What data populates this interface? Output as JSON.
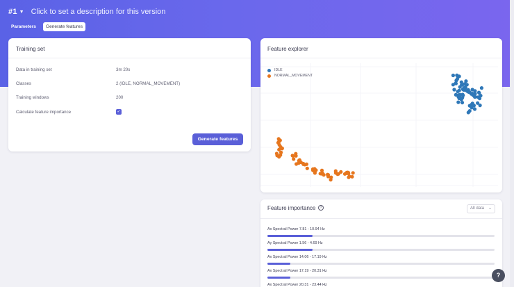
{
  "header": {
    "version_number": "#1",
    "version_description": "Click to set a description for this version",
    "tabs": [
      {
        "label": "Parameters"
      },
      {
        "label": "Generate features"
      }
    ]
  },
  "training_set": {
    "title": "Training set",
    "rows": [
      {
        "label": "Data in training set",
        "value": "3m 20s"
      },
      {
        "label": "Classes",
        "value": "2 (IDLE, NORMAL_MOVEMENT)"
      },
      {
        "label": "Training windows",
        "value": "200"
      },
      {
        "label": "Calculate feature importance",
        "checked": true
      }
    ],
    "generate_button": "Generate features"
  },
  "feature_explorer": {
    "title": "Feature explorer",
    "legend": [
      {
        "label": "IDLE",
        "color": "#2f78b8"
      },
      {
        "label": "NORMAL_MOVEMENT",
        "color": "#e6761e"
      }
    ]
  },
  "feature_importance": {
    "title": "Feature importance",
    "filter_value": "All data",
    "items": [
      {
        "label": "Ax Spectral Power 7.81 - 10.94 Hz",
        "fraction": 0.2
      },
      {
        "label": "Ay Spectral Power 1.56 - 4.69 Hz",
        "fraction": 0.2
      },
      {
        "label": "Ax Spectral Power 14.06 - 17.19 Hz",
        "fraction": 0.1
      },
      {
        "label": "Ax Spectral Power 17.19 - 20.31 Hz",
        "fraction": 0.1
      },
      {
        "label": "Ax Spectral Power 20.31 - 23.44 Hz",
        "fraction": 0.08
      }
    ]
  },
  "help_label": "?",
  "colors": {
    "accent": "#5a5fd8",
    "idle": "#2f78b8",
    "normal_movement": "#e6761e"
  }
}
